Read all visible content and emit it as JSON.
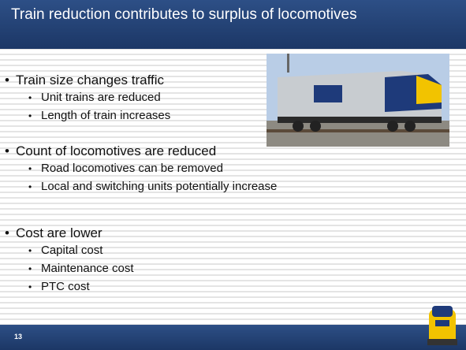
{
  "slide": {
    "title": "Train reduction contributes to surplus of locomotives",
    "bullets": [
      {
        "text": "Train size changes traffic",
        "sub": [
          "Unit trains are reduced",
          "Length of train increases"
        ]
      },
      {
        "text": "Count of locomotives are reduced",
        "sub": [
          "Road locomotives can be removed",
          "Local and switching units potentially increase"
        ]
      },
      {
        "text": "Cost are lower",
        "sub": [
          "Capital cost",
          "Maintenance cost",
          "PTC cost"
        ]
      }
    ],
    "page_number": "13"
  }
}
